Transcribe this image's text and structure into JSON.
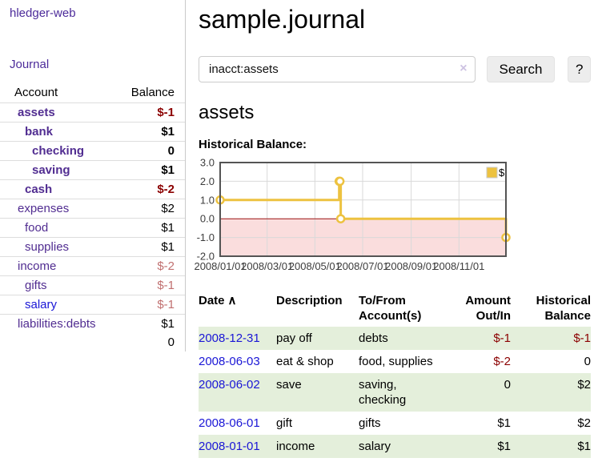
{
  "sidebar": {
    "app_title": "hledger-web",
    "journal_label": "Journal",
    "accounts_table": {
      "col_account": "Account",
      "col_balance": "Balance",
      "rows": [
        {
          "name": "assets",
          "depth": 1,
          "balance": "$-1",
          "bold": true,
          "neg": "strong"
        },
        {
          "name": "bank",
          "depth": 2,
          "balance": "$1",
          "bold": true,
          "neg": "none"
        },
        {
          "name": "checking",
          "depth": 3,
          "balance": "0",
          "bold": true,
          "neg": "none"
        },
        {
          "name": "saving",
          "depth": 3,
          "balance": "$1",
          "bold": true,
          "neg": "none"
        },
        {
          "name": "cash",
          "depth": 2,
          "balance": "$-2",
          "bold": true,
          "neg": "strong"
        },
        {
          "name": "expenses",
          "depth": 1,
          "balance": "$2",
          "bold": false,
          "neg": "none"
        },
        {
          "name": "food",
          "depth": 2,
          "balance": "$1",
          "bold": false,
          "neg": "none"
        },
        {
          "name": "supplies",
          "depth": 2,
          "balance": "$1",
          "bold": false,
          "neg": "none"
        },
        {
          "name": "income",
          "depth": 1,
          "balance": "$-2",
          "bold": false,
          "neg": "soft"
        },
        {
          "name": "gifts",
          "depth": 2,
          "balance": "$-1",
          "bold": false,
          "neg": "soft"
        },
        {
          "name": "salary",
          "depth": 2,
          "balance": "$-1",
          "bold": false,
          "neg": "soft",
          "link_color": "blue"
        },
        {
          "name": "liabilities:debts",
          "depth": 1,
          "balance": "$1",
          "bold": false,
          "neg": "none"
        }
      ],
      "total": "0"
    }
  },
  "header": {
    "title": "sample.journal"
  },
  "search": {
    "value": "inacct:assets",
    "clear_icon": "×",
    "button_label": "Search",
    "help_label": "?"
  },
  "account_page": {
    "heading": "assets",
    "chart_label": "Historical Balance:"
  },
  "chart_data": {
    "type": "line",
    "title": "Historical Balance:",
    "step": true,
    "series": [
      {
        "name": "$",
        "color": "#edc240",
        "points": [
          [
            "2008-01-01",
            1
          ],
          [
            "2008-06-01",
            2
          ],
          [
            "2008-06-02",
            2
          ],
          [
            "2008-06-03",
            0
          ],
          [
            "2008-12-31",
            -1
          ]
        ]
      }
    ],
    "x_range": [
      "2008-01-01",
      "2008-12-31"
    ],
    "x_ticks": [
      "2008/01/01",
      "2008/03/01",
      "2008/05/01",
      "2008/07/01",
      "2008/09/01",
      "2008/11/01"
    ],
    "y_ticks": [
      3.0,
      2.0,
      1.0,
      0.0,
      -1.0,
      -2.0
    ],
    "ylim": [
      -2,
      3
    ],
    "grid": true,
    "legend_position": "top-right",
    "negative_region_color": "#fadddd",
    "zero_line_color": "#991111",
    "grid_color": "#d9d9d9",
    "border_color": "#545454"
  },
  "register_table": {
    "columns": {
      "date": "Date",
      "sort_icon": "∧",
      "description": "Description",
      "tofrom_1": "To/From",
      "tofrom_2": "Account(s)",
      "amount_1": "Amount",
      "amount_2": "Out/In",
      "balance_1": "Historical",
      "balance_2": "Balance"
    },
    "rows": [
      {
        "date": "2008-12-31",
        "description": "pay off",
        "accounts": "debts",
        "amount": "$-1",
        "amount_neg": true,
        "balance": "$-1",
        "balance_neg": true,
        "shade": true
      },
      {
        "date": "2008-06-03",
        "description": "eat & shop",
        "accounts": "food, supplies",
        "amount": "$-2",
        "amount_neg": true,
        "balance": "0",
        "balance_neg": false,
        "shade": false
      },
      {
        "date": "2008-06-02",
        "description": "save",
        "accounts": "saving, checking",
        "amount": "0",
        "amount_neg": false,
        "balance": "$2",
        "balance_neg": false,
        "shade": true
      },
      {
        "date": "2008-06-01",
        "description": "gift",
        "accounts": "gifts",
        "amount": "$1",
        "amount_neg": false,
        "balance": "$2",
        "balance_neg": false,
        "shade": false
      },
      {
        "date": "2008-01-01",
        "description": "income",
        "accounts": "salary",
        "amount": "$1",
        "amount_neg": false,
        "balance": "$1",
        "balance_neg": false,
        "shade": true
      }
    ]
  },
  "colors": {
    "purple_link": "#4c2b9a",
    "account_link": "#512d91",
    "blue_link": "#1a16d6",
    "negative_strong": "#8b0000",
    "negative_soft": "#c17070",
    "row_stripe_green": "#e4efdb",
    "series_gold": "#edc240",
    "button_bg": "#ededed"
  }
}
